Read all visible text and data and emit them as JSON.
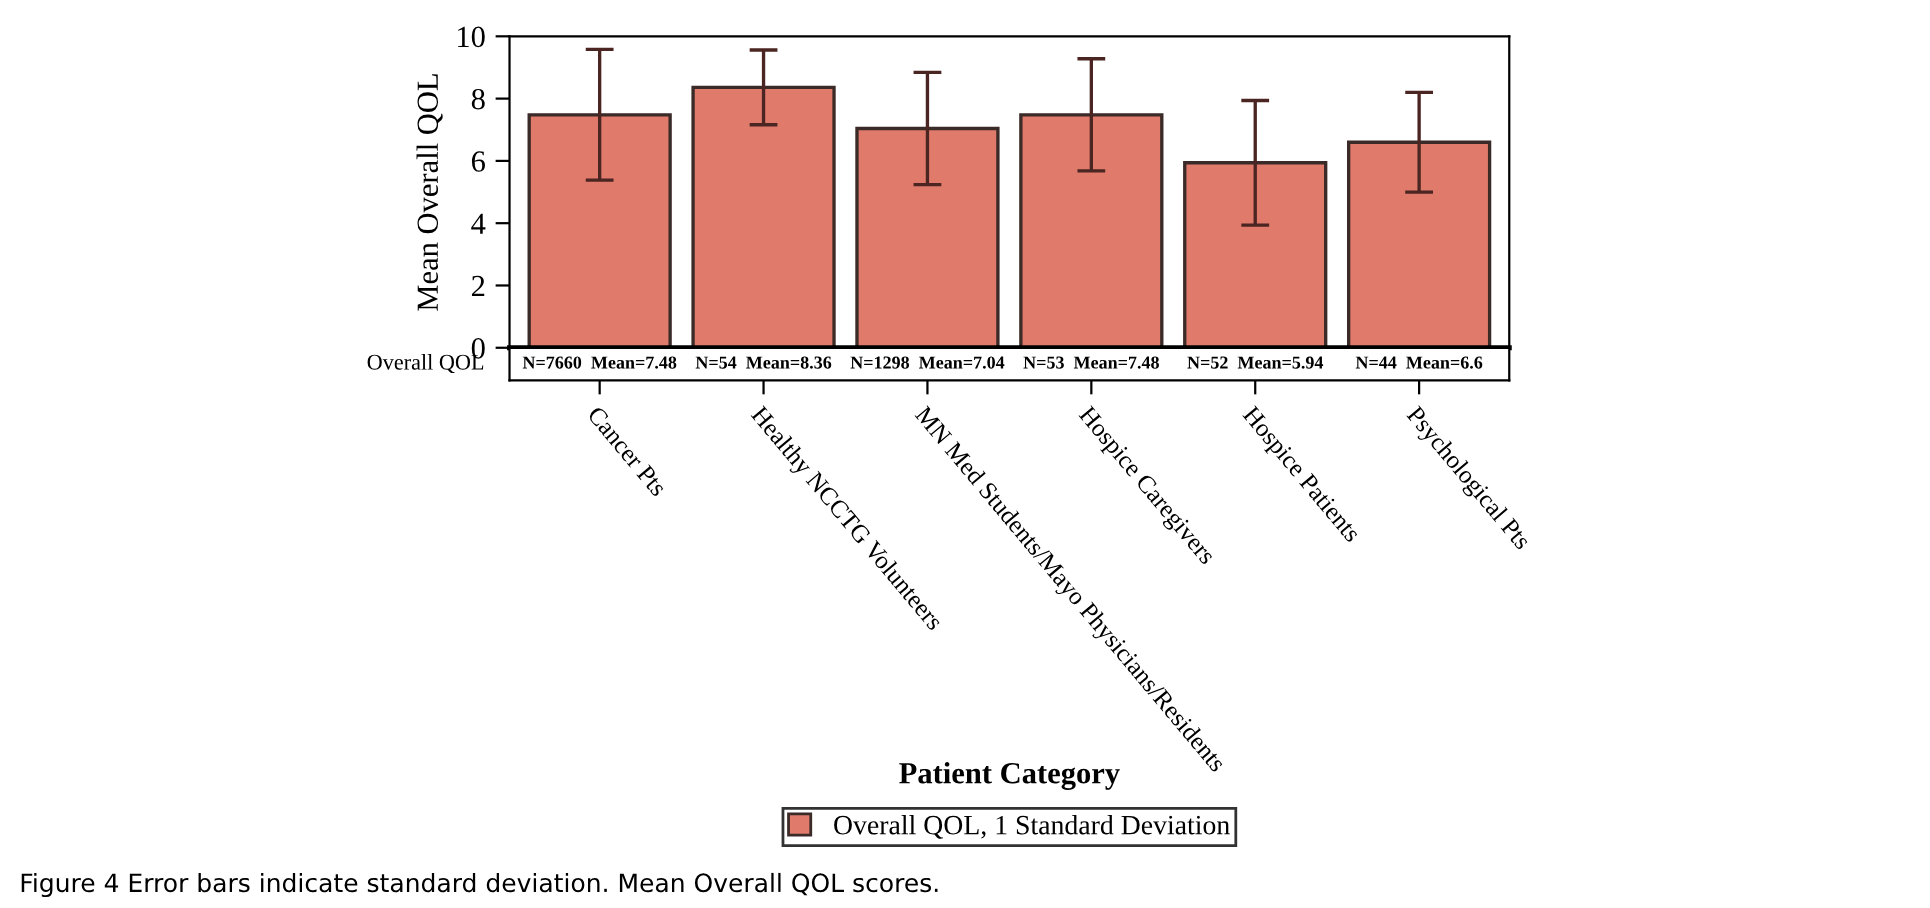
{
  "chart_data": {
    "type": "bar",
    "xlabel": "Patient Category",
    "ylabel": "Mean Overall QOL",
    "categories": [
      "Cancer Pts",
      "Healthy NCCTG Volunteers",
      "MN Med Students/Mayo Physicians/Residents",
      "Hospice Caregivers",
      "Hospice Patients",
      "Psychological Pts"
    ],
    "series": [
      {
        "name": "Overall QOL, 1 Standard Deviation",
        "color": "#e07b6c",
        "values": [
          7.48,
          8.36,
          7.04,
          7.48,
          5.94,
          6.6
        ],
        "errors": [
          2.1,
          1.2,
          1.8,
          1.8,
          2.0,
          1.6
        ],
        "value_labels": [
          "N=7660  Mean=7.48",
          "N=54  Mean=8.36",
          "N=1298  Mean=7.04",
          "N=53  Mean=7.48",
          "N=52  Mean=5.94",
          "N=44  Mean=6.6"
        ]
      }
    ],
    "ylim": [
      0,
      10
    ],
    "yticks": [
      0,
      2,
      4,
      6,
      8,
      10
    ],
    "grid": false,
    "legend": "bottom",
    "annotations": [
      "Overall QOL",
      "Figure 4 Error bars indicate standard deviation. Mean Overall QOL scores."
    ]
  }
}
